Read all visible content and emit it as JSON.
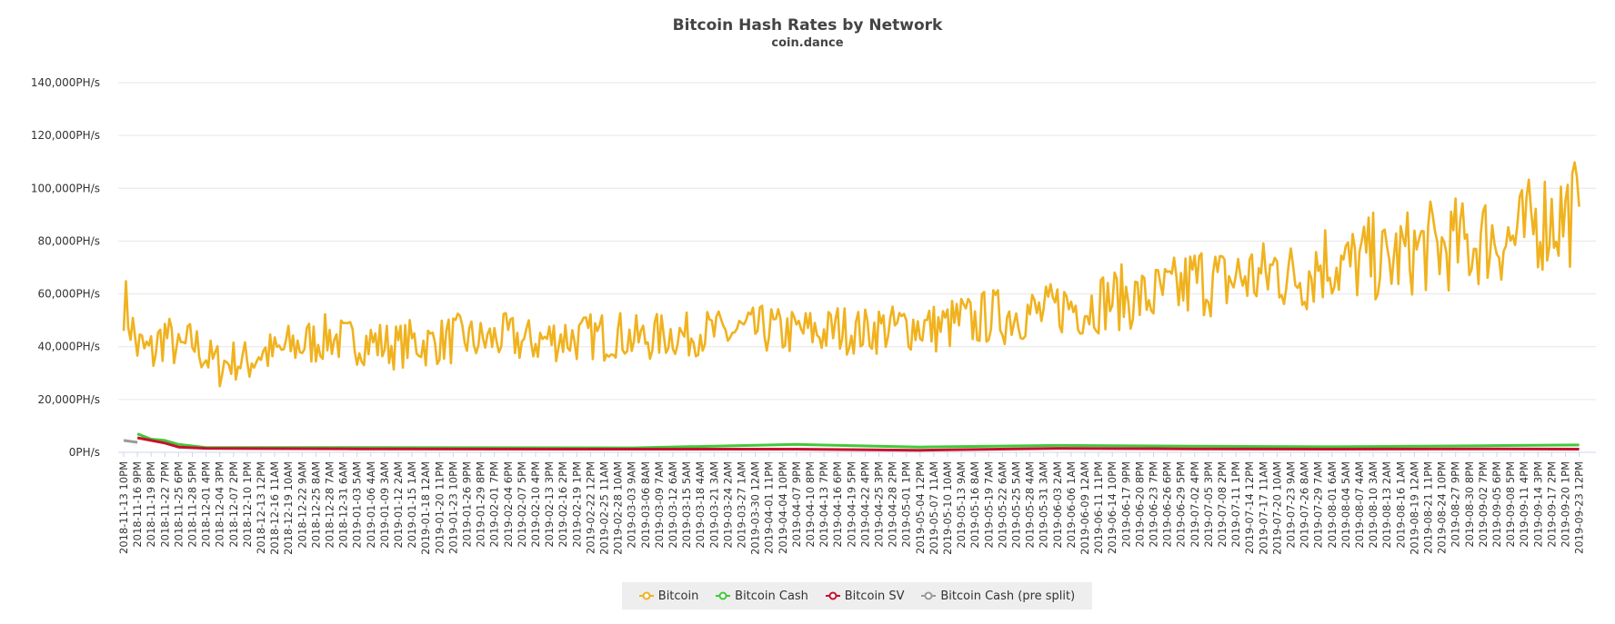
{
  "chart_data": {
    "type": "line",
    "title": "Bitcoin Hash Rates by Network",
    "subtitle": "coin.dance",
    "xlabel": "",
    "ylabel": "",
    "ylim": [
      0,
      140000
    ],
    "y_ticks": [
      "0PH/s",
      "20,000PH/s",
      "40,000PH/s",
      "60,000PH/s",
      "80,000PH/s",
      "100,000PH/s",
      "120,000PH/s",
      "140,000PH/s"
    ],
    "y_tick_values": [
      0,
      20000,
      40000,
      60000,
      80000,
      100000,
      120000,
      140000
    ],
    "x_range": [
      "2018-11-13 10PM",
      "2019-09-26 6PM"
    ],
    "x_tick_labels": [
      "2018-11-13 10PM",
      "2018-11-16 9PM",
      "2018-11-19 8PM",
      "2018-11-22 7PM",
      "2018-11-25 6PM",
      "2018-11-28 5PM",
      "2018-12-01 4PM",
      "2018-12-04 3PM",
      "2018-12-07 2PM",
      "2018-12-10 1PM",
      "2018-12-13 12PM",
      "2018-12-16 11AM",
      "2018-12-19 10AM",
      "2018-12-22 9AM",
      "2018-12-25 8AM",
      "2018-12-28 7AM",
      "2018-12-31 6AM",
      "2019-01-03 5AM",
      "2019-01-06 4AM",
      "2019-01-09 3AM",
      "2019-01-12 2AM",
      "2019-01-15 1AM",
      "2019-01-18 12AM",
      "2019-01-20 11PM",
      "2019-01-23 10PM",
      "2019-01-26 9PM",
      "2019-01-29 8PM",
      "2019-02-01 7PM",
      "2019-02-04 6PM",
      "2019-02-07 5PM",
      "2019-02-10 4PM",
      "2019-02-13 3PM",
      "2019-02-16 2PM",
      "2019-02-19 1PM",
      "2019-02-22 12PM",
      "2019-02-25 11AM",
      "2019-02-28 10AM",
      "2019-03-03 9AM",
      "2019-03-06 8AM",
      "2019-03-09 7AM",
      "2019-03-12 6AM",
      "2019-03-15 5AM",
      "2019-03-18 4AM",
      "2019-03-21 3AM",
      "2019-03-24 2AM",
      "2019-03-27 1AM",
      "2019-03-30 12AM",
      "2019-04-01 11PM",
      "2019-04-04 10PM",
      "2019-04-07 9PM",
      "2019-04-10 8PM",
      "2019-04-13 7PM",
      "2019-04-16 6PM",
      "2019-04-19 5PM",
      "2019-04-22 4PM",
      "2019-04-25 3PM",
      "2019-04-28 2PM",
      "2019-05-01 1PM",
      "2019-05-04 12PM",
      "2019-05-07 11AM",
      "2019-05-10 10AM",
      "2019-05-13 9AM",
      "2019-05-16 8AM",
      "2019-05-19 7AM",
      "2019-05-22 6AM",
      "2019-05-25 5AM",
      "2019-05-28 4AM",
      "2019-05-31 3AM",
      "2019-06-03 2AM",
      "2019-06-06 1AM",
      "2019-06-09 12AM",
      "2019-06-11 11PM",
      "2019-06-14 10PM",
      "2019-06-17 9PM",
      "2019-06-20 8PM",
      "2019-06-23 7PM",
      "2019-06-26 6PM",
      "2019-06-29 5PM",
      "2019-07-02 4PM",
      "2019-07-05 3PM",
      "2019-07-08 2PM",
      "2019-07-11 1PM",
      "2019-07-14 12PM",
      "2019-07-17 11AM",
      "2019-07-20 10AM",
      "2019-07-23 9AM",
      "2019-07-26 8AM",
      "2019-07-29 7AM",
      "2019-08-01 6AM",
      "2019-08-04 5AM",
      "2019-08-07 4AM",
      "2019-08-10 3AM",
      "2019-08-13 2AM",
      "2019-08-16 1AM",
      "2019-08-19 12AM",
      "2019-08-21 11PM",
      "2019-08-24 10PM",
      "2019-08-27 9PM",
      "2019-08-30 8PM",
      "2019-09-02 7PM",
      "2019-09-05 6PM",
      "2019-09-08 5PM",
      "2019-09-11 4PM",
      "2019-09-14 3PM",
      "2019-09-17 2PM",
      "2019-09-20 1PM",
      "2019-09-23 12PM"
    ],
    "grid": true,
    "legend_position": "bottom-center",
    "series": [
      {
        "name": "Bitcoin",
        "color": "#f0b21e",
        "x": [
          "2018-11-13 10PM",
          "2018-11-16 9PM",
          "2018-11-19 8PM",
          "2018-11-22 7PM",
          "2018-11-25 6PM",
          "2018-11-28 5PM",
          "2018-12-01 4PM",
          "2018-12-04 3PM",
          "2018-12-07 2PM",
          "2018-12-10 1PM",
          "2018-12-13 12PM",
          "2018-12-16 11AM",
          "2018-12-19 10AM",
          "2018-12-22 9AM",
          "2018-12-25 8AM",
          "2018-12-28 7AM",
          "2018-12-31 6AM",
          "2019-01-03 5AM",
          "2019-01-06 4AM",
          "2019-01-09 3AM",
          "2019-01-12 2AM",
          "2019-01-15 1AM",
          "2019-01-18 12AM",
          "2019-01-20 11PM",
          "2019-01-23 10PM",
          "2019-01-26 9PM",
          "2019-01-29 8PM",
          "2019-02-01 7PM",
          "2019-02-04 6PM",
          "2019-02-07 5PM",
          "2019-02-10 4PM",
          "2019-02-13 3PM",
          "2019-02-16 2PM",
          "2019-02-19 1PM",
          "2019-02-22 12PM",
          "2019-02-25 11AM",
          "2019-02-28 10AM",
          "2019-03-03 9AM",
          "2019-03-06 8AM",
          "2019-03-09 7AM",
          "2019-03-12 6AM",
          "2019-03-15 5AM",
          "2019-03-18 4AM",
          "2019-03-21 3AM",
          "2019-03-24 2AM",
          "2019-03-27 1AM",
          "2019-03-30 12AM",
          "2019-04-01 11PM",
          "2019-04-04 10PM",
          "2019-04-07 9PM",
          "2019-04-10 8PM",
          "2019-04-13 7PM",
          "2019-04-16 6PM",
          "2019-04-19 5PM",
          "2019-04-22 4PM",
          "2019-04-25 3PM",
          "2019-04-28 2PM",
          "2019-05-01 1PM",
          "2019-05-04 12PM",
          "2019-05-07 11AM",
          "2019-05-10 10AM",
          "2019-05-13 9AM",
          "2019-05-16 8AM",
          "2019-05-19 7AM",
          "2019-05-22 6AM",
          "2019-05-25 5AM",
          "2019-05-28 4AM",
          "2019-05-31 3AM",
          "2019-06-03 2AM",
          "2019-06-06 1AM",
          "2019-06-09 12AM",
          "2019-06-11 11PM",
          "2019-06-14 10PM",
          "2019-06-17 9PM",
          "2019-06-20 8PM",
          "2019-06-23 7PM",
          "2019-06-26 6PM",
          "2019-06-29 5PM",
          "2019-07-02 4PM",
          "2019-07-05 3PM",
          "2019-07-08 2PM",
          "2019-07-11 1PM",
          "2019-07-14 12PM",
          "2019-07-17 11AM",
          "2019-07-20 10AM",
          "2019-07-23 9AM",
          "2019-07-26 8AM",
          "2019-07-29 7AM",
          "2019-08-01 6AM",
          "2019-08-04 5AM",
          "2019-08-07 4AM",
          "2019-08-10 3AM",
          "2019-08-13 2AM",
          "2019-08-16 1AM",
          "2019-08-19 12AM",
          "2019-08-21 11PM",
          "2019-08-24 10PM",
          "2019-08-27 9PM",
          "2019-08-30 8PM",
          "2019-09-02 7PM",
          "2019-09-05 6PM",
          "2019-09-08 5PM",
          "2019-09-11 4PM",
          "2019-09-14 3PM",
          "2019-09-17 2PM",
          "2019-09-20 1PM",
          "2019-09-23 12PM"
        ],
        "values": [
          58000,
          40000,
          37000,
          45000,
          38000,
          42000,
          36000,
          33000,
          35000,
          34000,
          38000,
          37000,
          40000,
          41000,
          42000,
          44000,
          42000,
          42000,
          42000,
          41000,
          40000,
          42000,
          41000,
          42000,
          43000,
          43000,
          42000,
          43000,
          44000,
          42000,
          42000,
          43000,
          44000,
          43000,
          44000,
          44000,
          45000,
          43000,
          43000,
          44000,
          45000,
          44000,
          46000,
          45000,
          45000,
          46000,
          46000,
          47000,
          45000,
          46000,
          46000,
          45000,
          47000,
          46000,
          46000,
          47000,
          47000,
          48000,
          48000,
          47000,
          48000,
          50000,
          49000,
          52000,
          51000,
          53000,
          53000,
          52000,
          55000,
          56000,
          55000,
          57000,
          58000,
          59000,
          58000,
          59000,
          60000,
          62000,
          65000,
          66000,
          64000,
          66000,
          67000,
          66000,
          70000,
          66000,
          68000,
          72000,
          73000,
          70000,
          72000,
          74000,
          71000,
          75000,
          76000,
          78000,
          77000,
          79000,
          78000,
          81000,
          82000,
          80000,
          83000,
          88000,
          89000,
          90000,
          93000
        ],
        "band": [
          12000,
          10000,
          11000,
          10000,
          8000,
          9000,
          8000,
          9000,
          8000,
          9000,
          9000,
          9000,
          9000,
          10000,
          9000,
          9000,
          9000,
          9000,
          9000,
          9000,
          9000,
          9000,
          9000,
          9000,
          10000,
          9000,
          9000,
          9000,
          9000,
          9000,
          9000,
          9000,
          10000,
          9000,
          9000,
          10000,
          9000,
          9000,
          9000,
          9000,
          9000,
          9000,
          9000,
          9000,
          9000,
          9000,
          9000,
          10000,
          9000,
          9000,
          9000,
          9000,
          10000,
          9000,
          9000,
          10000,
          9000,
          10000,
          10000,
          10000,
          10000,
          11000,
          10000,
          11000,
          11000,
          11000,
          11000,
          11000,
          11000,
          12000,
          12000,
          12000,
          12000,
          13000,
          12000,
          13000,
          13000,
          14000,
          15000,
          15000,
          14000,
          14000,
          15000,
          15000,
          16000,
          15000,
          16000,
          17000,
          17000,
          16000,
          16000,
          17000,
          16000,
          17000,
          17000,
          18000,
          17000,
          18000,
          18000,
          18000,
          19000,
          18000,
          19000,
          20000,
          21000,
          21000,
          22000
        ]
      },
      {
        "name": "Bitcoin Cash",
        "color": "#41c93a",
        "x": [
          "2018-11-16 9PM",
          "2018-11-19 8PM",
          "2018-11-22 7PM",
          "2018-11-25 6PM",
          "2018-12-01 4PM",
          "2019-01-03 5AM",
          "2019-03-03 9AM",
          "2019-04-07 9PM",
          "2019-05-04 12PM",
          "2019-06-03 2AM",
          "2019-07-02 4PM",
          "2019-08-01 6AM",
          "2019-09-02 7PM",
          "2019-09-23 12PM"
        ],
        "values": [
          7000,
          5000,
          4500,
          3000,
          1800,
          1800,
          1700,
          3000,
          2000,
          2600,
          2300,
          2100,
          2500,
          2800
        ]
      },
      {
        "name": "Bitcoin SV",
        "color": "#c8102e",
        "x": [
          "2018-11-16 9PM",
          "2018-11-19 8PM",
          "2018-11-22 7PM",
          "2018-11-25 6PM",
          "2018-12-01 4PM",
          "2019-01-03 5AM",
          "2019-03-03 9AM",
          "2019-04-07 9PM",
          "2019-05-04 12PM",
          "2019-06-03 2AM",
          "2019-07-02 4PM",
          "2019-08-01 6AM",
          "2019-09-02 7PM",
          "2019-09-23 12PM"
        ],
        "values": [
          5500,
          4500,
          3500,
          2000,
          1500,
          1300,
          1200,
          1200,
          800,
          1500,
          1300,
          1200,
          1300,
          1200
        ]
      },
      {
        "name": "Bitcoin Cash (pre split)",
        "color": "#999999",
        "x": [
          "2018-11-13 10PM",
          "2018-11-16 9PM"
        ],
        "values": [
          4500,
          3800
        ]
      }
    ]
  }
}
